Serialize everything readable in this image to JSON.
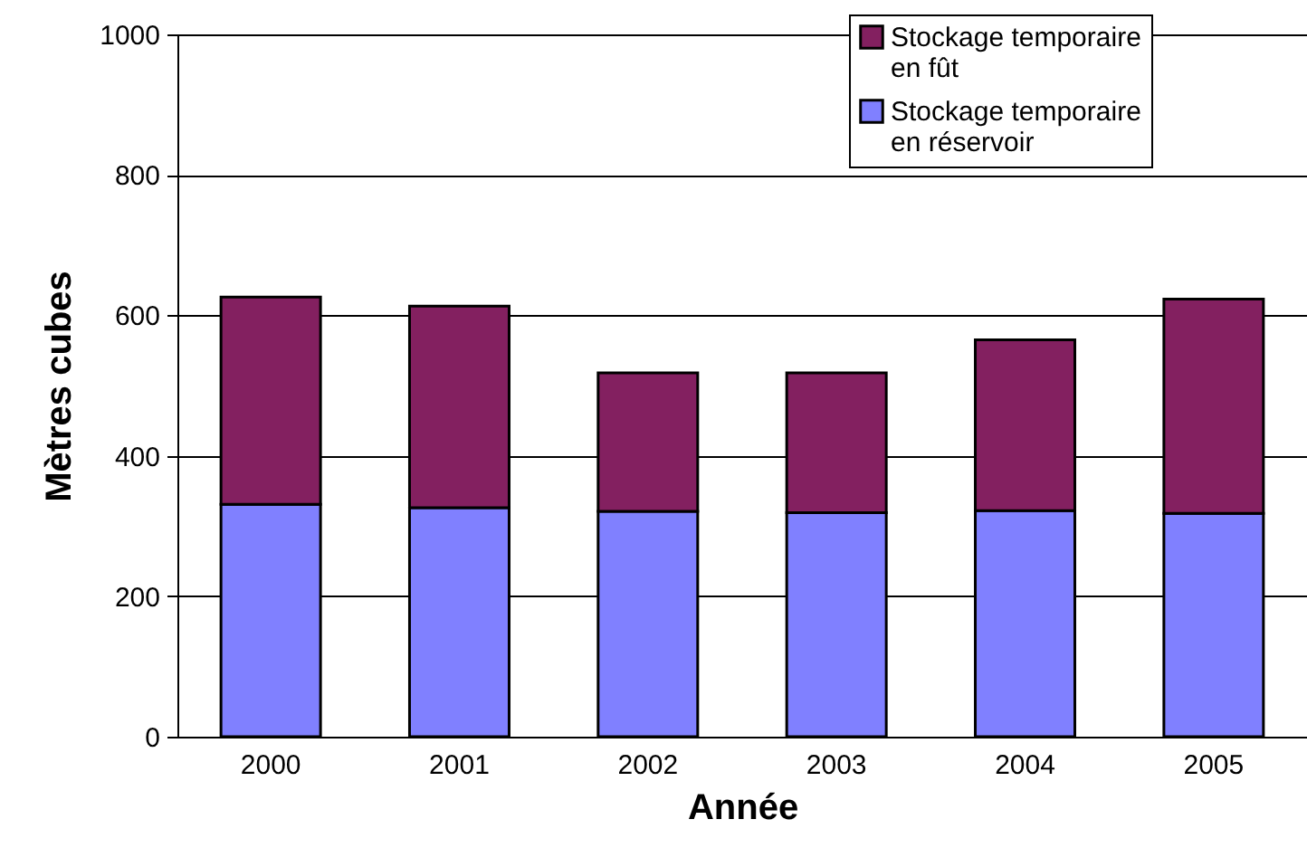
{
  "chart_data": {
    "type": "bar",
    "stacked": true,
    "xlabel": "Année",
    "ylabel": "Mètres cubes",
    "categories": [
      "2000",
      "2001",
      "2002",
      "2003",
      "2004",
      "2005"
    ],
    "series": [
      {
        "name": "Stockage temporaire en réservoir",
        "color": "#8080ff",
        "values": [
          331,
          326,
          321,
          319,
          322,
          318
        ]
      },
      {
        "name": "Stockage temporaire en fût",
        "color": "#832060",
        "values": [
          295,
          287,
          197,
          199,
          243,
          305
        ]
      }
    ],
    "ylim": [
      0,
      1000
    ],
    "yticks": [
      0,
      200,
      400,
      600,
      800,
      1000
    ],
    "grid": "y",
    "legend": "top right"
  }
}
